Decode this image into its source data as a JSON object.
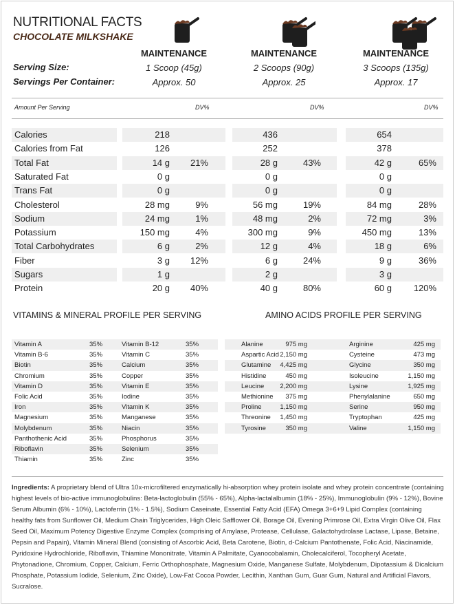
{
  "title": "NUTRITIONAL FACTS",
  "subtitle": "CHOCOLATE MILKSHAKE",
  "labels": {
    "serving_size": "Serving Size:",
    "servings_per_container": "Servings Per Container:",
    "amount_per_serving": "Amount Per Serving",
    "dv": "DV%"
  },
  "columns": [
    {
      "name": "MAINTENANCE",
      "serving": "1 Scoop (45g)",
      "per_container": "Approx. 50",
      "icon": "scoop-1-icon"
    },
    {
      "name": "MAINTENANCE",
      "serving": "2 Scoops (90g)",
      "per_container": "Approx. 25",
      "icon": "scoop-2-icon"
    },
    {
      "name": "MAINTENANCE",
      "serving": "3 Scoops (135g)",
      "per_container": "Approx. 17",
      "icon": "scoop-3-icon"
    }
  ],
  "nutrients": [
    {
      "label": "Calories",
      "v": [
        "218",
        "436",
        "654"
      ],
      "dv": [
        "",
        "",
        ""
      ]
    },
    {
      "label": "Calories from Fat",
      "v": [
        "126",
        "252",
        "378"
      ],
      "dv": [
        "",
        "",
        ""
      ]
    },
    {
      "label": "Total Fat",
      "v": [
        "14 g",
        "28 g",
        "42 g"
      ],
      "dv": [
        "21%",
        "43%",
        "65%"
      ]
    },
    {
      "label": "Saturated Fat",
      "v": [
        "0 g",
        "0 g",
        "0 g"
      ],
      "dv": [
        "",
        "",
        ""
      ]
    },
    {
      "label": "Trans Fat",
      "v": [
        "0 g",
        "0 g",
        "0 g"
      ],
      "dv": [
        "",
        "",
        ""
      ]
    },
    {
      "label": "Cholesterol",
      "v": [
        "28 mg",
        "56 mg",
        "84 mg"
      ],
      "dv": [
        "9%",
        "19%",
        "28%"
      ]
    },
    {
      "label": "Sodium",
      "v": [
        "24 mg",
        "48 mg",
        "72 mg"
      ],
      "dv": [
        "1%",
        "2%",
        "3%"
      ]
    },
    {
      "label": "Potassium",
      "v": [
        "150 mg",
        "300 mg",
        "450 mg"
      ],
      "dv": [
        "4%",
        "9%",
        "13%"
      ]
    },
    {
      "label": "Total Carbohydrates",
      "v": [
        "6 g",
        "12 g",
        "18 g"
      ],
      "dv": [
        "2%",
        "4%",
        "6%"
      ]
    },
    {
      "label": "Fiber",
      "v": [
        "3 g",
        "6 g",
        "9 g"
      ],
      "dv": [
        "12%",
        "24%",
        "36%"
      ]
    },
    {
      "label": "Sugars",
      "v": [
        "1 g",
        "2 g",
        "3 g"
      ],
      "dv": [
        "",
        "",
        ""
      ]
    },
    {
      "label": "Protein",
      "v": [
        "20 g",
        "40 g",
        "60 g"
      ],
      "dv": [
        "40%",
        "80%",
        "120%"
      ]
    }
  ],
  "vitamins_title": "VITAMINS & MINERAL PROFILE PER SERVING",
  "vitamins": [
    [
      "Vitamin A",
      "35%",
      "Vitamin B-12",
      "35%"
    ],
    [
      "Vitamin B-6",
      "35%",
      "Vitamin C",
      "35%"
    ],
    [
      "Biotin",
      "35%",
      "Calcium",
      "35%"
    ],
    [
      "Chromium",
      "35%",
      "Copper",
      "35%"
    ],
    [
      "Vitamin D",
      "35%",
      "Vitamin E",
      "35%"
    ],
    [
      "Folic Acid",
      "35%",
      "Iodine",
      "35%"
    ],
    [
      "Iron",
      "35%",
      "Vitamin K",
      "35%"
    ],
    [
      "Magnesium",
      "35%",
      "Manganese",
      "35%"
    ],
    [
      "Molybdenum",
      "35%",
      "Niacin",
      "35%"
    ],
    [
      "Panthothenic Acid",
      "35%",
      "Phosphorus",
      "35%"
    ],
    [
      "Riboflavin",
      "35%",
      "Selenium",
      "35%"
    ],
    [
      "Thiamin",
      "35%",
      "Zinc",
      "35%"
    ]
  ],
  "amino_title": "AMINO ACIDS PROFILE PER SERVING",
  "amino": [
    [
      "Alanine",
      "975 mg",
      "Arginine",
      "425 mg"
    ],
    [
      "Aspartic Acid",
      "2,150 mg",
      "Cysteine",
      "473 mg"
    ],
    [
      "Glutamine",
      "4,425 mg",
      "Glycine",
      "350 mg"
    ],
    [
      "Histidine",
      "450 mg",
      "Isoleucine",
      "1,150 mg"
    ],
    [
      "Leucine",
      "2,200 mg",
      "Lysine",
      "1,925 mg"
    ],
    [
      "Methionine",
      "375 mg",
      "Phenylalanine",
      "650 mg"
    ],
    [
      "Proline",
      "1,150 mg",
      "Serine",
      "950 mg"
    ],
    [
      "Threonine",
      "1,450 mg",
      "Tryptophan",
      "425 mg"
    ],
    [
      "Tyrosine",
      "350 mg",
      "Valine",
      "1,150 mg"
    ]
  ],
  "ingredients_label": "Ingredients:",
  "ingredients_text": " A proprietary blend of Ultra 10x-microfiltered enzymatically hi-absorption whey protein isolate and whey protein concentrate (containing highest levels of bio-active immunoglobulins:  Beta-lactoglobulin (55% - 65%), Alpha-lactalalbumin (18% - 25%), Immunoglobulin (9% - 12%), Bovine Serum Albumin (6% - 10%), Lactoferrin (1% - 1.5%), Sodium Caseinate, Essential Fatty Acid (EFA) Omega 3+6+9 Lipid Complex (containing healthy fats from Sunflower Oil, Medium Chain Triglycerides, High Oleic Safflower Oil, Borage Oil, Evening Primrose Oil, Extra Virgin Olive Oil, Flax Seed Oil, Maximum Potency Digestive Enzyme Complex (comprising of Amylase, Protease, Cellulase, Galactohydrolase Lactase, Lipase, Betaine, Pepsin and Papain), Vitamin Mineral Blend (consisting of Ascorbic Acid, Beta Carotene, Biotin, d-Calcium Pantothenate, Folic Acid, Niacinamide, Pyridoxine Hydrochloride, Riboflavin, Thiamine Mononitrate, Vitamin A Palmitate, Cyanocobalamin, Cholecalciferol, Tocopheryl Acetate, Phytonadione, Chromium, Copper, Calcium, Ferric Orthophosphate, Magnesium Oxide, Manganese Sulfate, Molybdenum, Dipotassium & Dicalcium Phosphate, Potassium Iodide, Selenium, Zinc Oxide), Low-Fat Cocoa Powder, Lecithin, Xanthan Gum, Guar Gum, Natural and Artificial Flavors, Sucralose.",
  "colors": {
    "subtitle": "#4a2a18",
    "shade": "#efefef",
    "scoop": "#1e1e1e",
    "powder": "#6b3a22"
  }
}
